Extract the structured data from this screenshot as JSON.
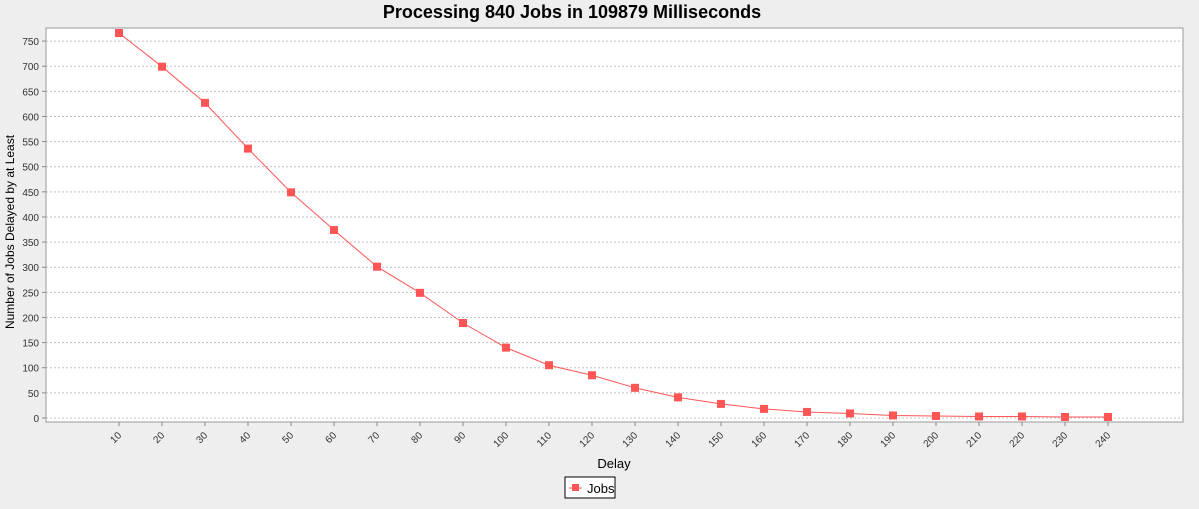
{
  "chart_data": {
    "type": "line",
    "title": "Processing 840 Jobs in 109879 Milliseconds",
    "xlabel": "Delay",
    "ylabel": "Number of Jobs Delayed by at Least",
    "categories": [
      "10",
      "20",
      "30",
      "40",
      "50",
      "60",
      "70",
      "80",
      "90",
      "100",
      "110",
      "120",
      "130",
      "140",
      "150",
      "160",
      "170",
      "180",
      "190",
      "200",
      "210",
      "220",
      "230",
      "240"
    ],
    "series": [
      {
        "name": "Jobs",
        "values": [
          766,
          699,
          627,
          536,
          449,
          374,
          301,
          249,
          189,
          140,
          105,
          85,
          60,
          41,
          28,
          18,
          12,
          9,
          5,
          4,
          3,
          3,
          2,
          2
        ]
      }
    ],
    "yticks": [
      0,
      50,
      100,
      150,
      200,
      250,
      300,
      350,
      400,
      450,
      500,
      550,
      600,
      650,
      700,
      750
    ],
    "ylim": [
      -8,
      776
    ],
    "grid": true,
    "legend": "bottom",
    "colors": {
      "series": "#ff5555",
      "plot_background": "#ffffff",
      "page_background": "#eeeeee",
      "gridline": "#c0c0c0"
    }
  }
}
